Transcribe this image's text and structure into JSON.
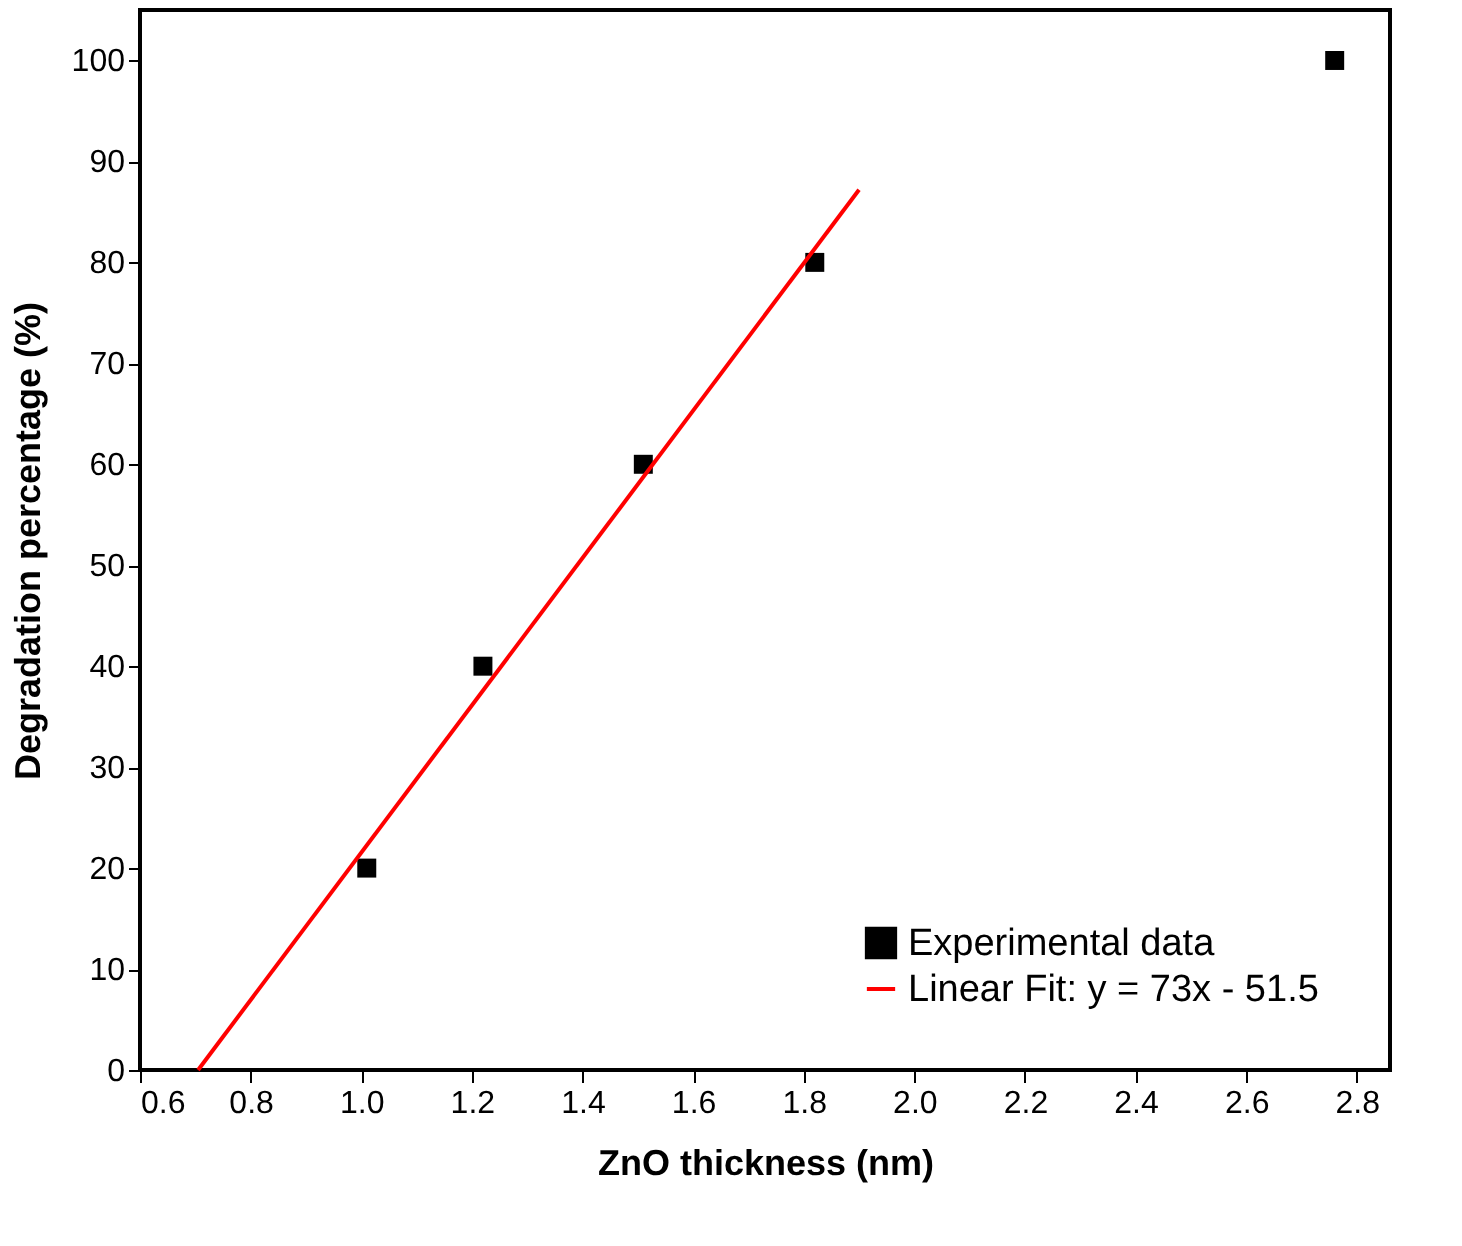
{
  "chart_data": {
    "type": "scatter",
    "xlabel": "ZnO thickness (nm)",
    "ylabel": "Degradation percentage (%)",
    "xlim": [
      0.6,
      2.86
    ],
    "xticks": [
      0.6,
      0.8,
      {
        "value": 1,
        "label": "1.0"
      },
      1.2,
      1.4,
      1.6,
      1.8,
      {
        "value": 2,
        "label": "2.0"
      },
      2.2,
      2.4,
      2.6,
      2.8
    ],
    "ylim": [
      0,
      105
    ],
    "yticks": [
      0,
      10,
      20,
      30,
      40,
      50,
      60,
      70,
      80,
      90,
      100
    ],
    "grid": false,
    "legend": "bottom right",
    "series": [
      {
        "name": "Experimental data",
        "type": "scatter",
        "color": "#000000",
        "marker": "square",
        "x": [
          1.01,
          1.22,
          1.51,
          1.82,
          2.76
        ],
        "values": [
          20,
          40,
          60,
          80,
          100
        ]
      },
      {
        "name": "Linear Fit: y =  73x - 51.5",
        "type": "line",
        "color": "#ff0000",
        "marker": "none",
        "x": [
          0.705,
          1.9
        ],
        "values": [
          0,
          87.2
        ]
      }
    ]
  }
}
